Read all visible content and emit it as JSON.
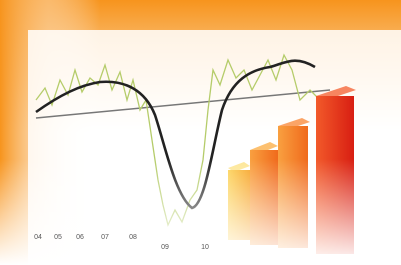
{
  "axis_labels": [
    "04",
    "05",
    "06",
    "07",
    "08",
    "09",
    "10"
  ]
}
